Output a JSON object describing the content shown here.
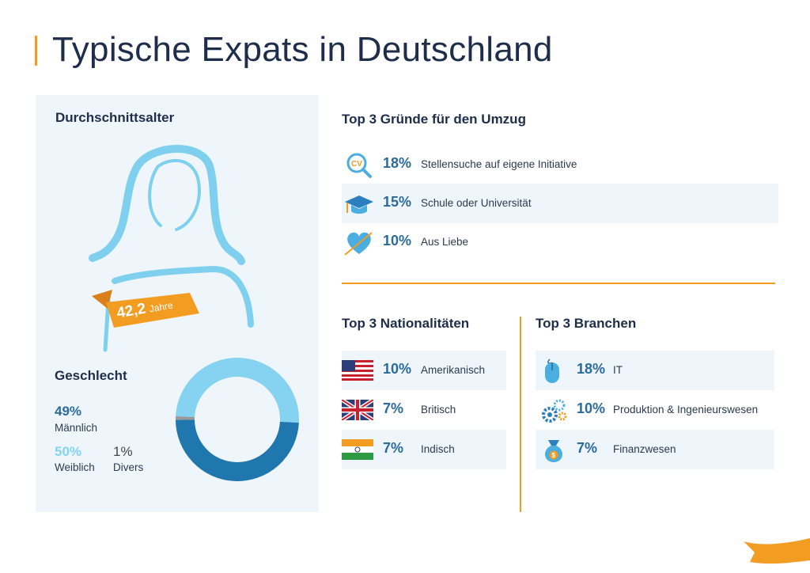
{
  "title": "Typische Expats in Deutschland",
  "age": {
    "heading": "Durchschnittsalter",
    "value": "42,2",
    "unit": "Jahre"
  },
  "gender": {
    "heading": "Geschlecht",
    "male_pct": "49%",
    "male_label": "Männlich",
    "female_pct": "50%",
    "female_label": "Weiblich",
    "diverse_pct": "1%",
    "diverse_label": "Divers",
    "shares": {
      "male": 49,
      "female": 50,
      "diverse": 1
    },
    "colors": {
      "male": "#2077ad",
      "female": "#85d3f0",
      "diverse": "#999999"
    }
  },
  "reasons": {
    "heading": "Top 3 Gründe für den Umzug",
    "items": [
      {
        "pct": "18%",
        "label": "Stellensuche auf eigene Initiative",
        "icon": "cv-search-icon"
      },
      {
        "pct": "15%",
        "label": "Schule oder Universität",
        "icon": "graduation-cap-icon"
      },
      {
        "pct": "10%",
        "label": "Aus Liebe",
        "icon": "heart-arrow-icon"
      }
    ]
  },
  "nationalities": {
    "heading": "Top 3 Nationalitäten",
    "items": [
      {
        "pct": "10%",
        "label": "Amerikanisch",
        "icon": "usa-flag-icon"
      },
      {
        "pct": "7%",
        "label": "Britisch",
        "icon": "uk-flag-icon"
      },
      {
        "pct": "7%",
        "label": "Indisch",
        "icon": "india-flag-icon"
      }
    ]
  },
  "industries": {
    "heading": "Top 3 Branchen",
    "items": [
      {
        "pct": "18%",
        "label": "IT",
        "icon": "mouse-icon"
      },
      {
        "pct": "10%",
        "label": "Produktion & Ingenieurswesen",
        "icon": "gears-icon"
      },
      {
        "pct": "7%",
        "label": "Finanzwesen",
        "icon": "money-bag-icon"
      }
    ]
  },
  "colors": {
    "accent": "#f39c22",
    "navy": "#1e2e4a",
    "blue_text": "#2b6b9b",
    "panel": "#eef6fc",
    "light_blue": "#85d3f0"
  }
}
